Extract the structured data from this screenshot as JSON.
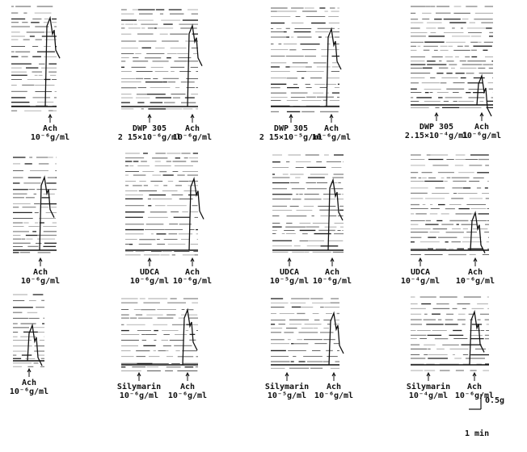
{
  "panels": [
    [
      {
        "annotations": [
          {
            "lines": [
              "Ach",
              "10⁻⁶g/ml"
            ]
          }
        ]
      },
      {
        "annotations": [
          {
            "lines": [
              "DWP 305",
              "2 15×10⁻⁶g/ml"
            ]
          },
          {
            "lines": [
              "Ach",
              "10⁻⁶g/ml"
            ]
          }
        ]
      },
      {
        "annotations": [
          {
            "lines": [
              "DWP 305",
              "2 15×10⁻⁵g/ml"
            ]
          },
          {
            "lines": [
              "Ach",
              "10⁻⁶g/ml"
            ]
          }
        ]
      },
      {
        "annotations": [
          {
            "lines": [
              "DWP 305",
              "2.15×10⁻⁴g/ml"
            ]
          },
          {
            "lines": [
              "Ach",
              "10⁻⁶g/ml"
            ]
          }
        ]
      }
    ],
    [
      {
        "annotations": [
          {
            "lines": [
              "Ach",
              "10⁻⁶g/ml"
            ]
          }
        ]
      },
      {
        "annotations": [
          {
            "lines": [
              "UDCA",
              "10⁻⁶g/ml"
            ]
          },
          {
            "lines": [
              "Ach",
              "10⁻⁶g/ml"
            ]
          }
        ]
      },
      {
        "annotations": [
          {
            "lines": [
              "UDCA",
              "10⁻⁵g/ml"
            ]
          },
          {
            "lines": [
              "Ach",
              "10⁻⁶g/ml"
            ]
          }
        ]
      },
      {
        "annotations": [
          {
            "lines": [
              "UDCA",
              "10⁻⁴g/ml"
            ]
          },
          {
            "lines": [
              "Ach",
              "10⁻⁶g/ml"
            ]
          }
        ]
      }
    ],
    [
      {
        "annotations": [
          {
            "lines": [
              "Ach",
              "10⁻⁶g/ml"
            ]
          }
        ]
      },
      {
        "annotations": [
          {
            "lines": [
              "Silymarin",
              "10⁻⁶g/ml"
            ]
          },
          {
            "lines": [
              "Ach",
              "10⁻⁶g/ml"
            ]
          }
        ]
      },
      {
        "annotations": [
          {
            "lines": [
              "Silymarin",
              "10⁻⁵g/ml"
            ]
          },
          {
            "lines": [
              "Ach",
              "10⁻⁶g/ml"
            ]
          }
        ]
      },
      {
        "annotations": [
          {
            "lines": [
              "Silymarin",
              "10⁻⁴g/ml"
            ]
          },
          {
            "lines": [
              "Ach",
              "10⁻⁶g/ml"
            ]
          }
        ]
      }
    ]
  ],
  "scale_bar": {
    "force": "0.5g",
    "time": "1 min"
  }
}
